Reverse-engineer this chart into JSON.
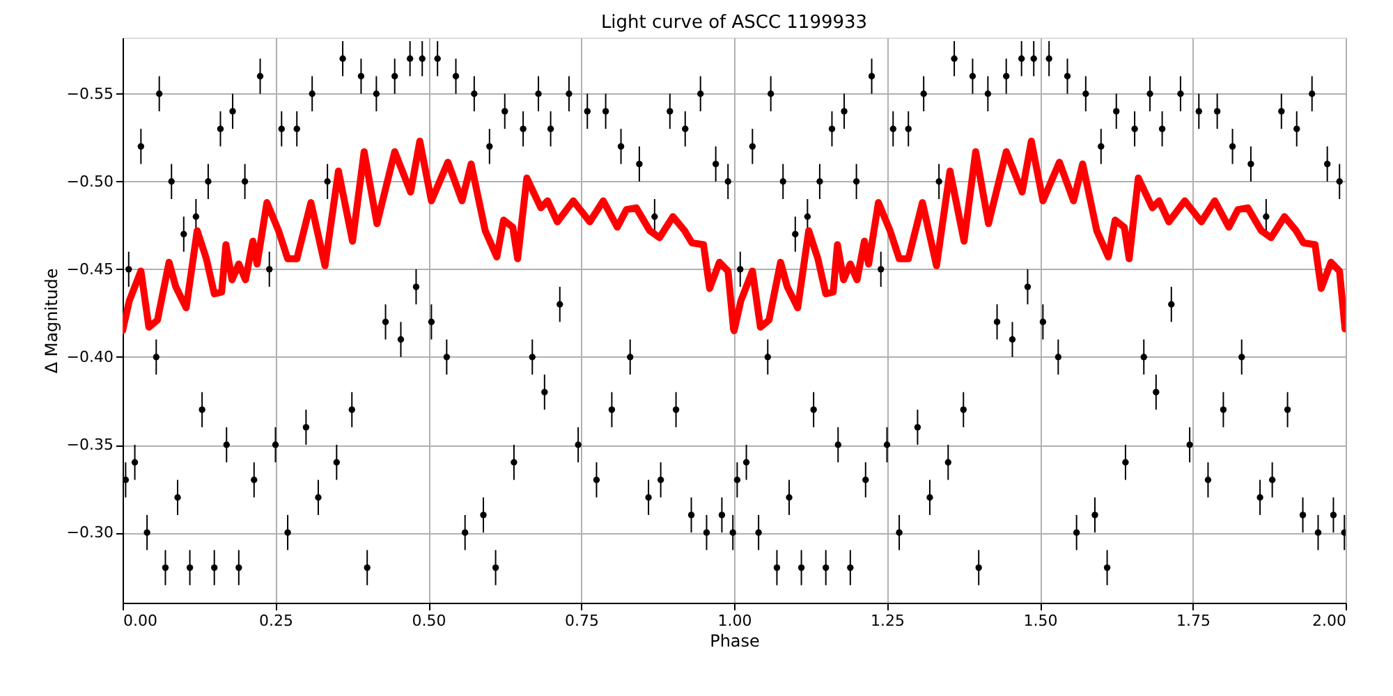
{
  "chart_data": {
    "type": "scatter",
    "title": "Light curve of ASCC 1199933",
    "xlabel": "Phase",
    "ylabel": "Δ Magnitude",
    "xlim": [
      0,
      2
    ],
    "ylim": [
      -0.26,
      -0.582
    ],
    "xticks": [
      {
        "value": 0,
        "label": "0.00"
      },
      {
        "value": 0.25,
        "label": "0.25"
      },
      {
        "value": 0.5,
        "label": "0.50"
      },
      {
        "value": 0.75,
        "label": "0.75"
      },
      {
        "value": 1,
        "label": "1.00"
      },
      {
        "value": 1.25,
        "label": "1.25"
      },
      {
        "value": 1.5,
        "label": "1.50"
      },
      {
        "value": 1.75,
        "label": "1.75"
      },
      {
        "value": 2,
        "label": "2.00"
      }
    ],
    "yticks": [
      {
        "value": -0.55,
        "label": "−0.55"
      },
      {
        "value": -0.5,
        "label": "−0.50"
      },
      {
        "value": -0.45,
        "label": "−0.45"
      },
      {
        "value": -0.4,
        "label": "−0.40"
      },
      {
        "value": -0.35,
        "label": "−0.35"
      },
      {
        "value": -0.3,
        "label": "−0.30"
      }
    ],
    "grid": true,
    "series": [
      {
        "color": "#000000",
        "marker": "circle",
        "x": [
          0.005,
          0.01,
          0.02,
          0.03,
          0.04,
          0.055,
          0.06,
          0.07,
          0.08,
          0.09,
          0.1,
          0.11,
          0.12,
          0.13,
          0.14,
          0.15,
          0.16,
          0.17,
          0.18,
          0.19,
          0.2,
          0.215,
          0.225,
          0.24,
          0.25,
          0.26,
          0.27,
          0.285,
          0.3,
          0.31,
          0.32,
          0.335,
          0.35,
          0.36,
          0.375,
          0.39,
          0.4,
          0.415,
          0.43,
          0.445,
          0.455,
          0.47,
          0.48,
          0.49,
          0.505,
          0.515,
          0.53,
          0.545,
          0.56,
          0.575,
          0.59,
          0.6,
          0.61,
          0.625,
          0.64,
          0.655,
          0.67,
          0.68,
          0.69,
          0.7,
          0.715,
          0.73,
          0.745,
          0.76,
          0.775,
          0.79,
          0.8,
          0.815,
          0.83,
          0.845,
          0.86,
          0.87,
          0.88,
          0.895,
          0.905,
          0.92,
          0.93,
          0.945,
          0.955,
          0.97,
          0.98,
          0.99,
          0.998,
          1.005,
          1.01,
          1.02,
          1.03,
          1.04,
          1.055,
          1.06,
          1.07,
          1.08,
          1.09,
          1.1,
          1.11,
          1.12,
          1.13,
          1.14,
          1.15,
          1.16,
          1.17,
          1.18,
          1.19,
          1.2,
          1.215,
          1.225,
          1.24,
          1.25,
          1.26,
          1.27,
          1.285,
          1.3,
          1.31,
          1.32,
          1.335,
          1.35,
          1.36,
          1.375,
          1.39,
          1.4,
          1.415,
          1.43,
          1.445,
          1.455,
          1.47,
          1.48,
          1.49,
          1.505,
          1.515,
          1.53,
          1.545,
          1.56,
          1.575,
          1.59,
          1.6,
          1.61,
          1.625,
          1.64,
          1.655,
          1.67,
          1.68,
          1.69,
          1.7,
          1.715,
          1.73,
          1.745,
          1.76,
          1.775,
          1.79,
          1.8,
          1.815,
          1.83,
          1.845,
          1.86,
          1.87,
          1.88,
          1.895,
          1.905,
          1.92,
          1.93,
          1.945,
          1.955,
          1.97,
          1.98,
          1.99,
          1.998
        ],
        "values": [
          -0.33,
          -0.45,
          -0.34,
          -0.52,
          -0.3,
          -0.4,
          -0.55,
          -0.28,
          -0.5,
          -0.32,
          -0.47,
          -0.28,
          -0.48,
          -0.37,
          -0.5,
          -0.28,
          -0.53,
          -0.35,
          -0.54,
          -0.28,
          -0.5,
          -0.33,
          -0.56,
          -0.45,
          -0.35,
          -0.53,
          -0.3,
          -0.53,
          -0.36,
          -0.55,
          -0.32,
          -0.5,
          -0.34,
          -0.57,
          -0.37,
          -0.56,
          -0.28,
          -0.55,
          -0.42,
          -0.56,
          -0.41,
          -0.57,
          -0.44,
          -0.57,
          -0.42,
          -0.57,
          -0.4,
          -0.56,
          -0.3,
          -0.55,
          -0.31,
          -0.52,
          -0.28,
          -0.54,
          -0.34,
          -0.53,
          -0.4,
          -0.55,
          -0.38,
          -0.53,
          -0.43,
          -0.55,
          -0.35,
          -0.54,
          -0.33,
          -0.54,
          -0.37,
          -0.52,
          -0.4,
          -0.51,
          -0.32,
          -0.48,
          -0.33,
          -0.54,
          -0.37,
          -0.53,
          -0.31,
          -0.55,
          -0.3,
          -0.51,
          -0.31,
          -0.5,
          -0.3,
          -0.33,
          -0.45,
          -0.34,
          -0.52,
          -0.3,
          -0.4,
          -0.55,
          -0.28,
          -0.5,
          -0.32,
          -0.47,
          -0.28,
          -0.48,
          -0.37,
          -0.5,
          -0.28,
          -0.53,
          -0.35,
          -0.54,
          -0.28,
          -0.5,
          -0.33,
          -0.56,
          -0.45,
          -0.35,
          -0.53,
          -0.3,
          -0.53,
          -0.36,
          -0.55,
          -0.32,
          -0.5,
          -0.34,
          -0.57,
          -0.37,
          -0.56,
          -0.28,
          -0.55,
          -0.42,
          -0.56,
          -0.41,
          -0.57,
          -0.44,
          -0.57,
          -0.42,
          -0.57,
          -0.4,
          -0.56,
          -0.3,
          -0.55,
          -0.31,
          -0.52,
          -0.28,
          -0.54,
          -0.34,
          -0.53,
          -0.4,
          -0.55,
          -0.38,
          -0.53,
          -0.43,
          -0.55,
          -0.35,
          -0.54,
          -0.33,
          -0.54,
          -0.37,
          -0.52,
          -0.4,
          -0.51,
          -0.32,
          -0.48,
          -0.33,
          -0.54,
          -0.37,
          -0.53,
          -0.31,
          -0.55,
          -0.3,
          -0.51,
          -0.31,
          -0.5,
          -0.3
        ],
        "errors": [
          0.01,
          0.01,
          0.01,
          0.01,
          0.01,
          0.01,
          0.01,
          0.01,
          0.01,
          0.01,
          0.01,
          0.01,
          0.01,
          0.01,
          0.01,
          0.01,
          0.01,
          0.01,
          0.01,
          0.01,
          0.01,
          0.01,
          0.01,
          0.01,
          0.01,
          0.01,
          0.01,
          0.01,
          0.01,
          0.01,
          0.01,
          0.01,
          0.01,
          0.01,
          0.01,
          0.01,
          0.01,
          0.01,
          0.01,
          0.01,
          0.01,
          0.01,
          0.01,
          0.01,
          0.01,
          0.01,
          0.01,
          0.01,
          0.01,
          0.01,
          0.01,
          0.01,
          0.01,
          0.01,
          0.01,
          0.01,
          0.01,
          0.01,
          0.01,
          0.01,
          0.01,
          0.01,
          0.01,
          0.01,
          0.01,
          0.01,
          0.01,
          0.01,
          0.01,
          0.01,
          0.01,
          0.01,
          0.01,
          0.01,
          0.01,
          0.01,
          0.01,
          0.01,
          0.01,
          0.01,
          0.01,
          0.01,
          0.01,
          0.01,
          0.01,
          0.01,
          0.01,
          0.01,
          0.01,
          0.01,
          0.01,
          0.01,
          0.01,
          0.01,
          0.01,
          0.01,
          0.01,
          0.01,
          0.01,
          0.01,
          0.01,
          0.01,
          0.01,
          0.01,
          0.01,
          0.01,
          0.01,
          0.01,
          0.01,
          0.01,
          0.01,
          0.01,
          0.01,
          0.01,
          0.01,
          0.01,
          0.01,
          0.01,
          0.01,
          0.01,
          0.01,
          0.01,
          0.01,
          0.01,
          0.01,
          0.01,
          0.01,
          0.01,
          0.01,
          0.01,
          0.01,
          0.01,
          0.01,
          0.01,
          0.01,
          0.01,
          0.01,
          0.01,
          0.01,
          0.01,
          0.01,
          0.01,
          0.01,
          0.01,
          0.01,
          0.01,
          0.01,
          0.01,
          0.01,
          0.01,
          0.01,
          0.01,
          0.01,
          0.01,
          0.01,
          0.01,
          0.01,
          0.01,
          0.01,
          0.01,
          0.01,
          0.01,
          0.01,
          0.01,
          0.01,
          0.01
        ]
      },
      {
        "type": "line",
        "color": "#ff0000",
        "x": [
          0.0,
          0.011,
          0.03,
          0.043,
          0.057,
          0.076,
          0.087,
          0.104,
          0.122,
          0.137,
          0.15,
          0.162,
          0.169,
          0.179,
          0.19,
          0.201,
          0.213,
          0.22,
          0.236,
          0.255,
          0.27,
          0.285,
          0.308,
          0.331,
          0.353,
          0.376,
          0.395,
          0.416,
          0.445,
          0.471,
          0.486,
          0.505,
          0.532,
          0.555,
          0.57,
          0.593,
          0.612,
          0.623,
          0.638,
          0.646,
          0.661,
          0.684,
          0.695,
          0.711,
          0.737,
          0.764,
          0.786,
          0.809,
          0.824,
          0.84,
          0.862,
          0.878,
          0.9,
          0.919,
          0.931,
          0.95,
          0.96,
          0.976,
          0.99,
          0.999,
          1.0,
          1.011,
          1.03,
          1.043,
          1.057,
          1.076,
          1.087,
          1.104,
          1.122,
          1.137,
          1.15,
          1.162,
          1.169,
          1.179,
          1.19,
          1.201,
          1.213,
          1.22,
          1.236,
          1.255,
          1.27,
          1.285,
          1.308,
          1.331,
          1.353,
          1.376,
          1.395,
          1.416,
          1.445,
          1.471,
          1.486,
          1.505,
          1.532,
          1.555,
          1.57,
          1.593,
          1.612,
          1.623,
          1.638,
          1.646,
          1.661,
          1.684,
          1.695,
          1.711,
          1.737,
          1.764,
          1.786,
          1.809,
          1.824,
          1.84,
          1.862,
          1.878,
          1.9,
          1.919,
          1.931,
          1.95,
          1.96,
          1.976,
          1.99,
          1.999
        ],
        "values": [
          -0.415,
          -0.432,
          -0.449,
          -0.417,
          -0.421,
          -0.454,
          -0.44,
          -0.428,
          -0.472,
          -0.456,
          -0.436,
          -0.437,
          -0.464,
          -0.444,
          -0.453,
          -0.444,
          -0.466,
          -0.453,
          -0.488,
          -0.472,
          -0.456,
          -0.456,
          -0.488,
          -0.452,
          -0.506,
          -0.466,
          -0.517,
          -0.476,
          -0.517,
          -0.494,
          -0.523,
          -0.489,
          -0.511,
          -0.489,
          -0.51,
          -0.472,
          -0.457,
          -0.478,
          -0.474,
          -0.456,
          -0.502,
          -0.485,
          -0.489,
          -0.477,
          -0.489,
          -0.477,
          -0.489,
          -0.474,
          -0.484,
          -0.485,
          -0.472,
          -0.468,
          -0.48,
          -0.472,
          -0.465,
          -0.464,
          -0.439,
          -0.454,
          -0.449,
          -0.416,
          -0.415,
          -0.432,
          -0.449,
          -0.417,
          -0.421,
          -0.454,
          -0.44,
          -0.428,
          -0.472,
          -0.456,
          -0.436,
          -0.437,
          -0.464,
          -0.444,
          -0.453,
          -0.444,
          -0.466,
          -0.453,
          -0.488,
          -0.472,
          -0.456,
          -0.456,
          -0.488,
          -0.452,
          -0.506,
          -0.466,
          -0.517,
          -0.476,
          -0.517,
          -0.494,
          -0.523,
          -0.489,
          -0.511,
          -0.489,
          -0.51,
          -0.472,
          -0.457,
          -0.478,
          -0.474,
          -0.456,
          -0.502,
          -0.485,
          -0.489,
          -0.477,
          -0.489,
          -0.477,
          -0.489,
          -0.474,
          -0.484,
          -0.485,
          -0.472,
          -0.468,
          -0.48,
          -0.472,
          -0.465,
          -0.464,
          -0.439,
          -0.454,
          -0.449,
          -0.416
        ]
      }
    ]
  }
}
